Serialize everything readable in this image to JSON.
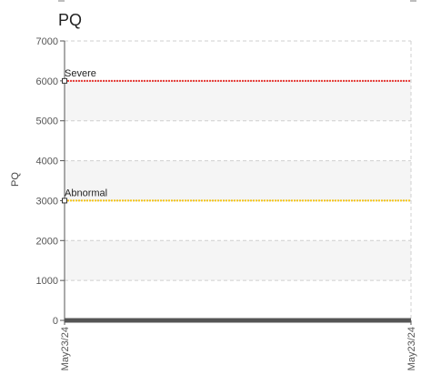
{
  "chart_data": {
    "type": "line",
    "title": "PQ",
    "ylabel": "PQ",
    "xlabel": "",
    "ylim": [
      0,
      7000
    ],
    "y_ticks": [
      0,
      1000,
      2000,
      3000,
      4000,
      5000,
      6000,
      7000
    ],
    "x_tick_labels": [
      "May23/24",
      "May23/24"
    ],
    "grid": true,
    "thresholds": [
      {
        "label": "Severe",
        "value": 6000,
        "color": "#e53935"
      },
      {
        "label": "Abnormal",
        "value": 3000,
        "color": "#f5c518"
      }
    ],
    "series": [
      {
        "values": [
          0,
          0
        ],
        "color": "#555555"
      }
    ]
  }
}
